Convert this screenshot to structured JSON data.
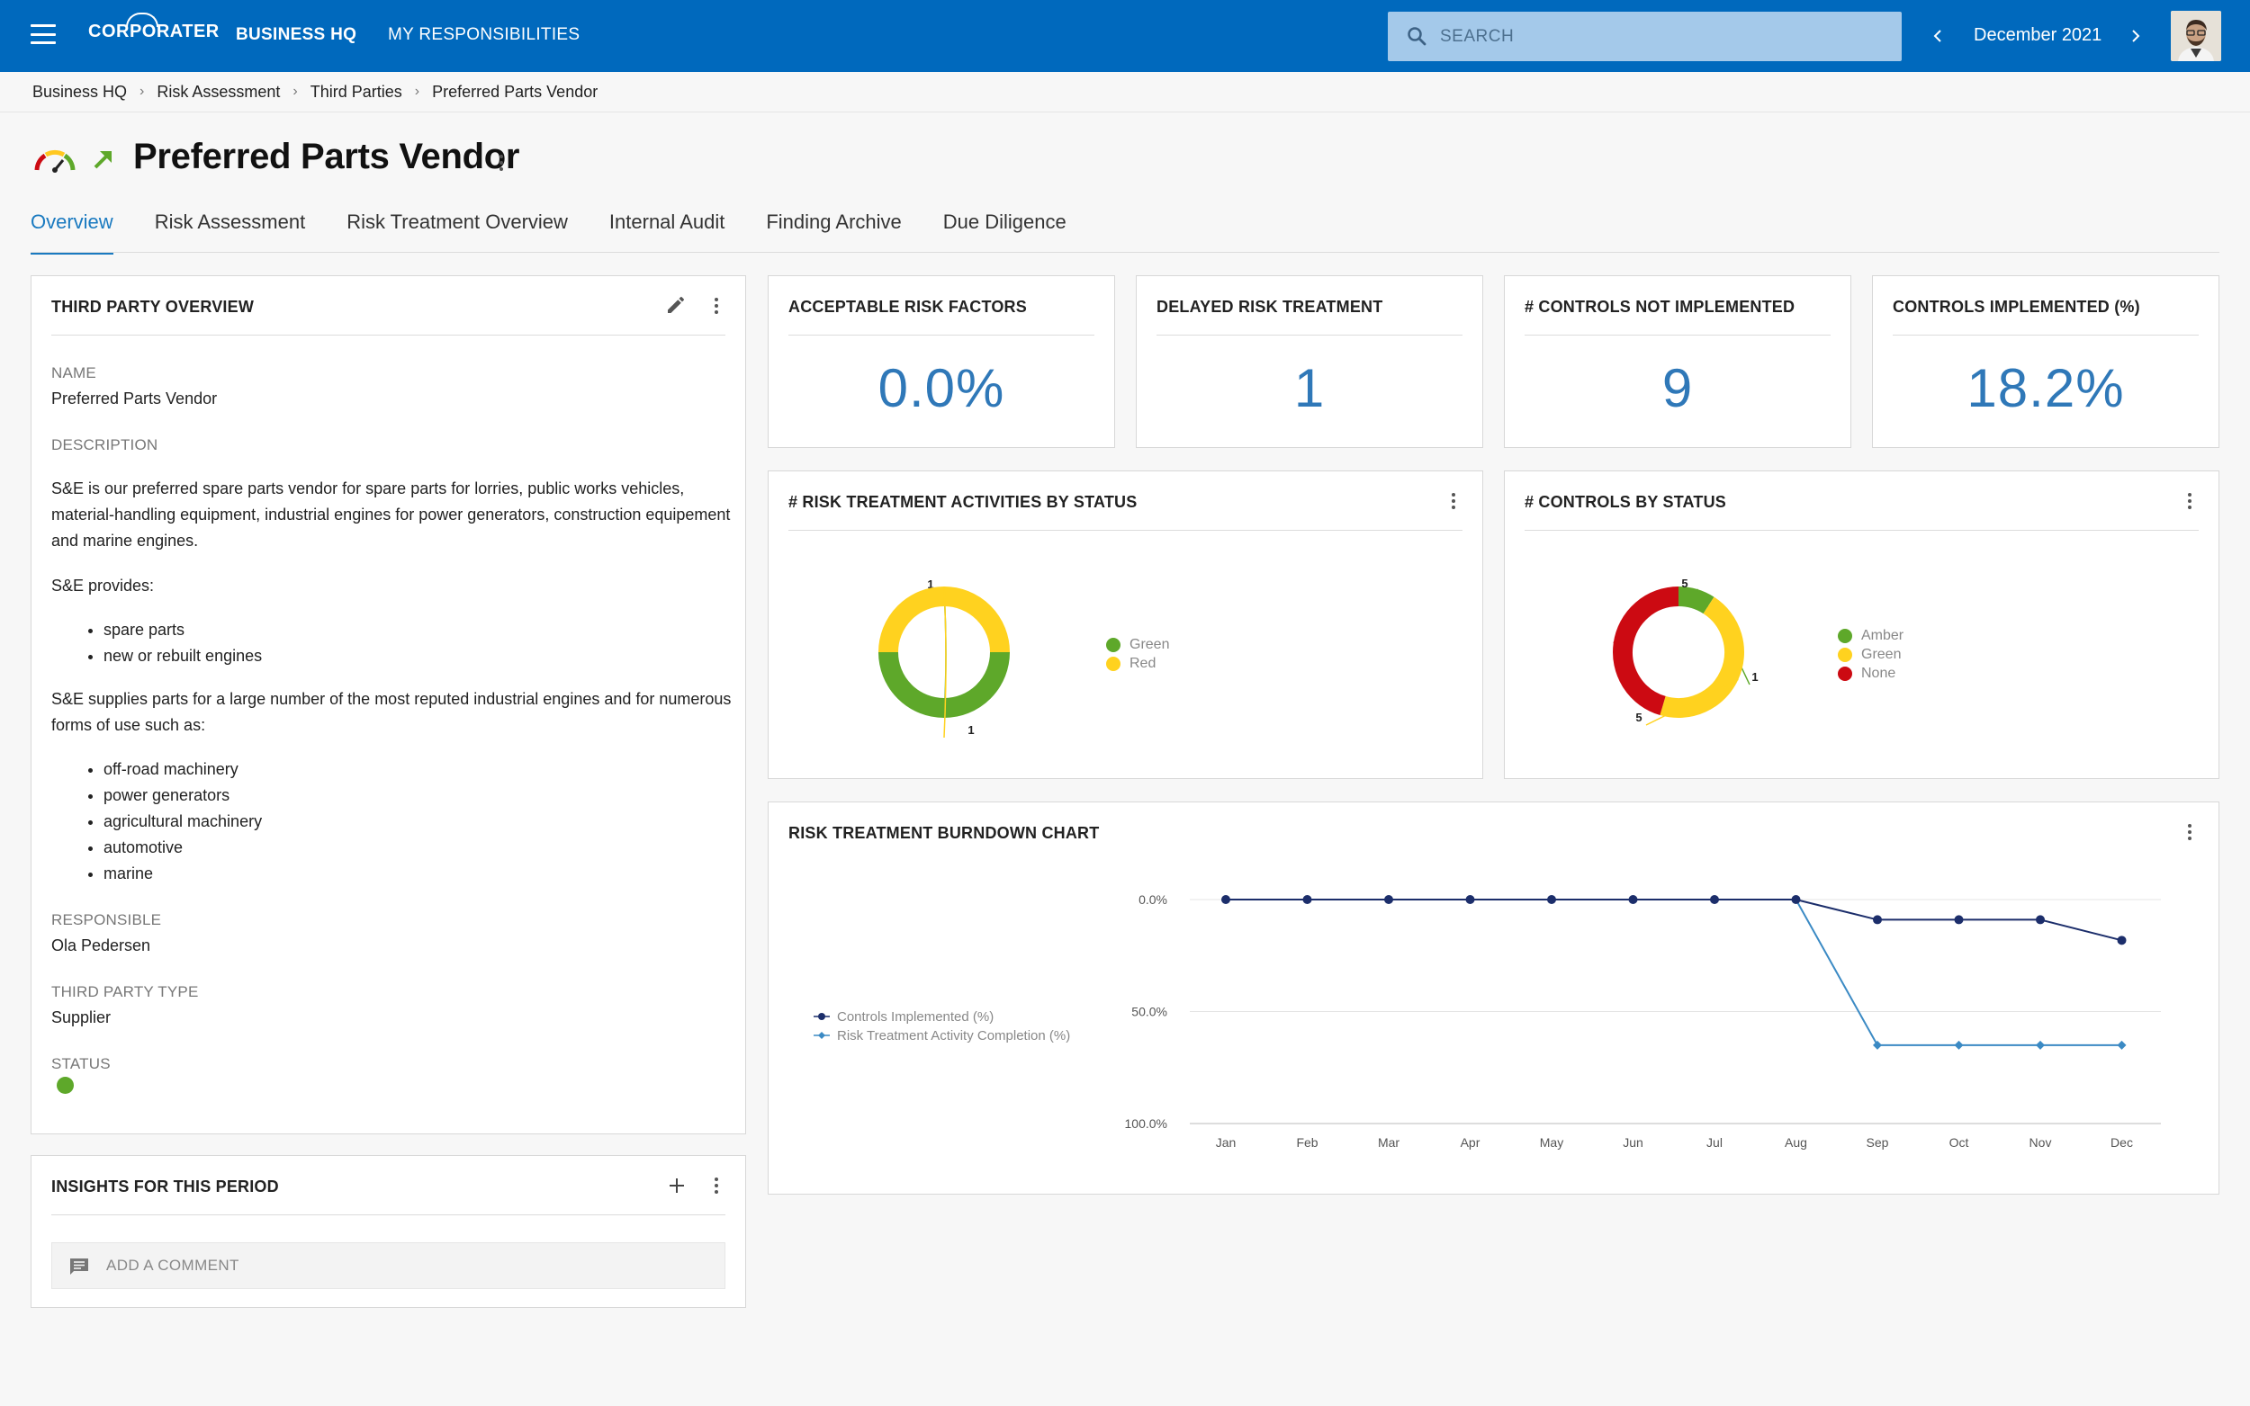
{
  "colors": {
    "brand": "#0069bd",
    "accent": "#1a7ac0",
    "kpi": "#2f78b8",
    "green": "#5ea82a",
    "yellow": "#ffd21f",
    "red": "#cc0a12"
  },
  "header": {
    "logo": "CORPORATER",
    "nav": [
      "BUSINESS HQ",
      "MY RESPONSIBILITIES"
    ],
    "search_placeholder": "SEARCH",
    "period": "December 2021"
  },
  "breadcrumb": [
    "Business HQ",
    "Risk Assessment",
    "Third Parties",
    "Preferred Parts Vendor"
  ],
  "page_title": "Preferred Parts Vendor",
  "tabs": [
    "Overview",
    "Risk Assessment",
    "Risk Treatment Overview",
    "Internal Audit",
    "Finding Archive",
    "Due Diligence"
  ],
  "overview": {
    "title": "THIRD PARTY OVERVIEW",
    "name_label": "NAME",
    "name": "Preferred Parts Vendor",
    "description_label": "DESCRIPTION",
    "desc_p1": "S&E is our preferred spare parts vendor for spare parts for lorries, public works vehicles, material-handling equipment, industrial engines for power generators, construction equipement and marine engines.",
    "desc_p2": "S&E provides:",
    "list1": [
      "spare parts",
      "new or rebuilt engines"
    ],
    "desc_p3": "S&E supplies parts for a large number of the most reputed industrial engines and for numerous forms of use such as:",
    "list2": [
      "off-road machinery",
      "power generators",
      "agricultural machinery",
      "automotive",
      "marine"
    ],
    "responsible_label": "RESPONSIBLE",
    "responsible": "Ola Pedersen",
    "type_label": "THIRD PARTY TYPE",
    "type": "Supplier",
    "status_label": "STATUS",
    "status": "green"
  },
  "insights": {
    "title": "INSIGHTS FOR THIS PERIOD",
    "comment_placeholder": "ADD A COMMENT"
  },
  "kpis": [
    {
      "title": "ACCEPTABLE RISK FACTORS",
      "value": "0.0%"
    },
    {
      "title": "DELAYED RISK TREATMENT",
      "value": "1"
    },
    {
      "title": "# CONTROLS NOT IMPLEMENTED",
      "value": "9"
    },
    {
      "title": "CONTROLS IMPLEMENTED (%)",
      "value": "18.2%"
    }
  ],
  "chart_data": [
    {
      "type": "pie",
      "title": "# RISK TREATMENT ACTIVITIES BY STATUS",
      "slices": [
        {
          "label": "Green",
          "value": 1,
          "color": "#5ea82a"
        },
        {
          "label": "Red",
          "value": 1,
          "color": "#ffd21f"
        }
      ],
      "legend": "right"
    },
    {
      "type": "pie",
      "title": "# CONTROLS BY STATUS",
      "slices": [
        {
          "label": "Amber",
          "value": 1,
          "color": "#5ea82a"
        },
        {
          "label": "Green",
          "value": 5,
          "color": "#ffd21f"
        },
        {
          "label": "None",
          "value": 5,
          "color": "#cc0a12"
        }
      ],
      "legend": "right"
    },
    {
      "type": "line",
      "title": "RISK TREATMENT BURNDOWN CHART",
      "categories": [
        "Jan",
        "Feb",
        "Mar",
        "Apr",
        "May",
        "Jun",
        "Jul",
        "Aug",
        "Sep",
        "Oct",
        "Nov",
        "Dec"
      ],
      "y_ticks": [
        "0.0%",
        "50.0%",
        "100.0%"
      ],
      "ylim": [
        0,
        100
      ],
      "y_reversed": true,
      "legend": "left",
      "series": [
        {
          "name": "Controls Implemented (%)",
          "color": "#1c2e6b",
          "marker": "circle",
          "values": [
            0,
            0,
            0,
            0,
            0,
            0,
            0,
            0,
            9,
            9,
            9,
            18.2
          ]
        },
        {
          "name": "Risk Treatment Activity Completion (%)",
          "color": "#3b8ac4",
          "marker": "diamond",
          "values": [
            0,
            0,
            0,
            0,
            0,
            0,
            0,
            0,
            65,
            65,
            65,
            65
          ]
        }
      ]
    }
  ]
}
